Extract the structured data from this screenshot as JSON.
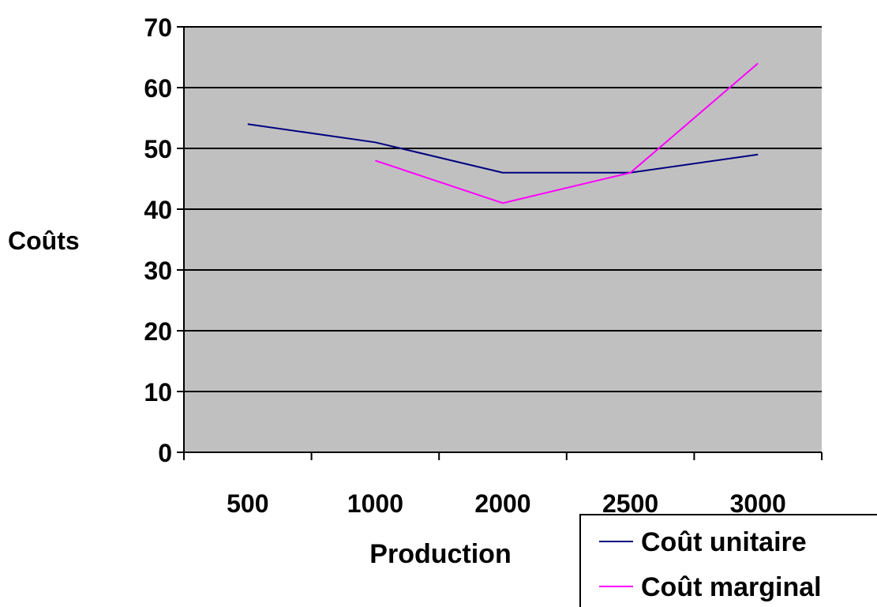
{
  "chart_data": {
    "type": "line",
    "categories": [
      "500",
      "1000",
      "2000",
      "2500",
      "3000"
    ],
    "ylabel": "Coûts",
    "xlabel": "Production",
    "ylim": [
      0,
      70
    ],
    "yticks": [
      0,
      10,
      20,
      30,
      40,
      50,
      60,
      70
    ],
    "grid": true,
    "legend_position": "bottom-right",
    "plot_background": "#c0c0c0",
    "series": [
      {
        "name": "Coût unitaire",
        "color": "#000080",
        "values": [
          54,
          51,
          46,
          46,
          49
        ]
      },
      {
        "name": "Coût marginal",
        "color": "#ff00ff",
        "values": [
          null,
          48,
          41,
          46,
          64
        ]
      }
    ]
  }
}
